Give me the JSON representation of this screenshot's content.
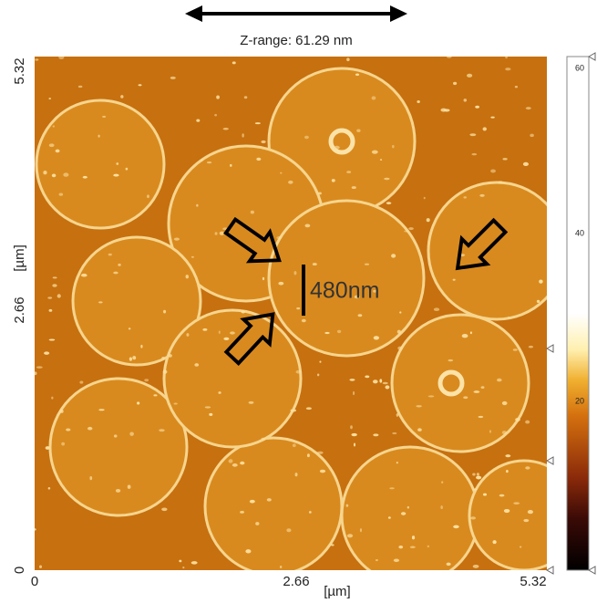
{
  "header": {
    "title": "Z-range: 61.29 nm"
  },
  "image": {
    "annotation": "480nm"
  },
  "y_axis": {
    "labels": [
      "5.32",
      "2.66",
      "0"
    ],
    "unit": "[µm]"
  },
  "x_axis": {
    "labels": [
      "0",
      "2.66",
      "5.32"
    ],
    "unit": "[µm]"
  },
  "colorbar": {
    "labels": [
      "60",
      "40",
      "20"
    ]
  }
}
